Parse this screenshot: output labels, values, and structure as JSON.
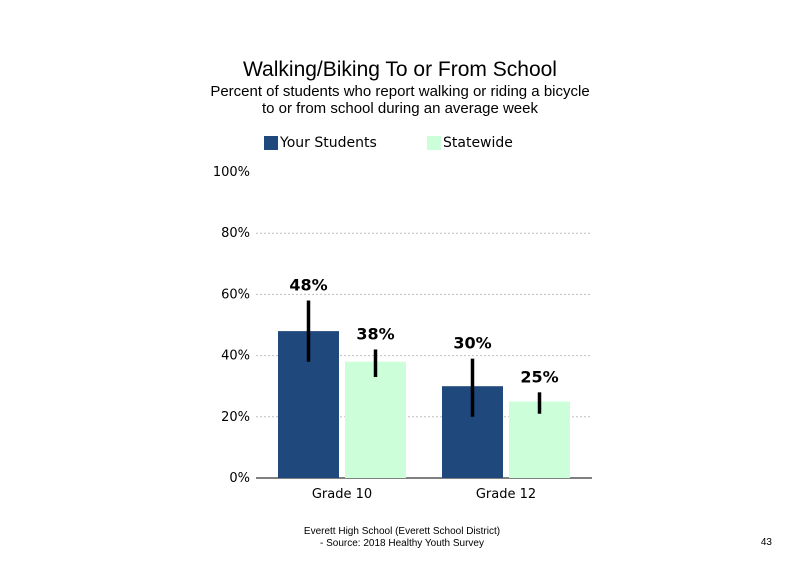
{
  "colors": {
    "your_students": "#1F497D",
    "statewide": "#CCFFD9",
    "axis": "#000000",
    "grid": "#BFBFBF"
  },
  "chart_data": {
    "type": "bar",
    "title": "Walking/Biking  To or From School",
    "subtitle": "Percent of students  who report walking  or riding a bicycle\nto or from school during an average week",
    "categories": [
      "Grade 10",
      "Grade 12"
    ],
    "series": [
      {
        "name": "Your Students",
        "values": [
          48,
          30
        ],
        "labels": [
          "48%",
          "30%"
        ],
        "error_low": [
          38,
          20
        ],
        "error_high": [
          58,
          39
        ]
      },
      {
        "name": "Statewide",
        "values": [
          38,
          25
        ],
        "labels": [
          "38%",
          "25%"
        ],
        "error_low": [
          33,
          21
        ],
        "error_high": [
          42,
          28
        ]
      }
    ],
    "ylim": [
      0,
      100
    ],
    "y_ticks": [
      0,
      20,
      40,
      60,
      80,
      100
    ],
    "y_tick_labels": [
      "0%",
      "20%",
      "40%",
      "60%",
      "80%",
      "100%"
    ],
    "grid": true,
    "legend_position": "top"
  },
  "footer": {
    "line1": "Everett High  School (Everett School District)",
    "line2": "- Source: 2018 Healthy  Youth Survey"
  },
  "page_number": "43"
}
